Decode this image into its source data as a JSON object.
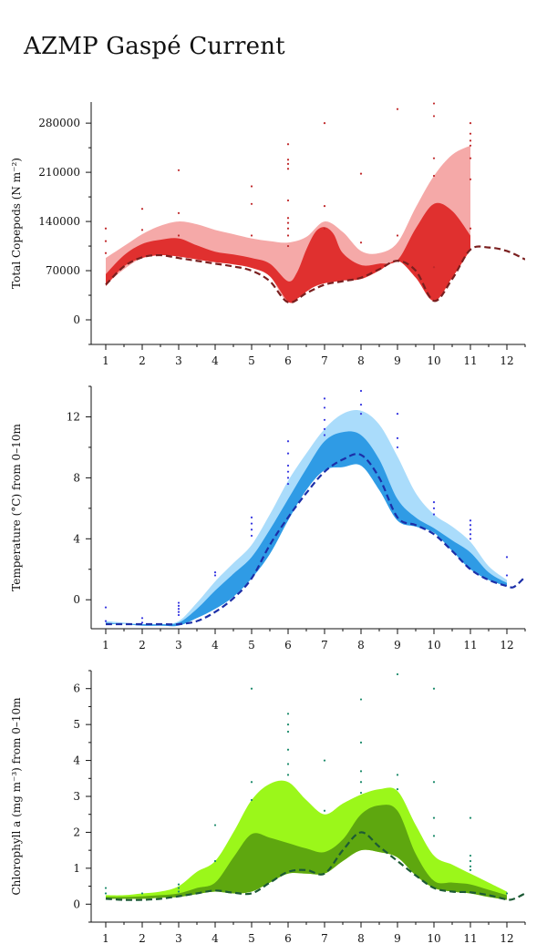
{
  "title": "AZMP Gaspé Current",
  "colors": {
    "copepod_outer": "#f5a9a8",
    "copepod_inner": "#e0302f",
    "copepod_line": "#7a1f1f",
    "copepod_dots": "#c0282a",
    "temp_outer": "#aadcfb",
    "temp_inner": "#2f9be5",
    "temp_line": "#1c2fa8",
    "temp_dots": "#3535e0",
    "chl_outer": "#9bf71a",
    "chl_inner": "#5ea70f",
    "chl_line": "#1c5a35",
    "chl_dots": "#1a8a6a"
  },
  "chart_data": [
    {
      "type": "area",
      "name": "copepods",
      "ylabel": "Total Copepods (N m⁻²)",
      "yticks": [
        0,
        70000,
        140000,
        210000,
        280000
      ],
      "ytick_labels": [
        "0",
        "70000",
        "140000",
        "210000",
        "280000"
      ],
      "ylim": [
        -35000,
        310000
      ],
      "xlim": [
        0.6,
        12.5
      ],
      "xticks": [
        1,
        2,
        3,
        4,
        5,
        6,
        7,
        8,
        9,
        10,
        11,
        12
      ],
      "xtick_labels": [
        "1",
        "2",
        "3",
        "4",
        "5",
        "6",
        "7",
        "8",
        "9",
        "10",
        "11",
        "12"
      ],
      "outer_band": {
        "x": [
          1,
          1.5,
          2,
          2.5,
          3,
          3.5,
          4,
          4.5,
          5,
          5.5,
          6,
          6.5,
          7,
          7.5,
          8,
          8.5,
          9,
          9.5,
          10,
          10.5,
          11
        ],
        "upper": [
          88000,
          105000,
          122000,
          134000,
          140000,
          136000,
          128000,
          122000,
          116000,
          112000,
          110000,
          118000,
          140000,
          125000,
          98000,
          95000,
          110000,
          160000,
          205000,
          235000,
          248000
        ],
        "lower": [
          50000,
          72000,
          88000,
          92000,
          90000,
          86000,
          82000,
          79000,
          74000,
          62000,
          25000,
          42000,
          52000,
          60000,
          60000,
          72000,
          84000,
          70000,
          27000,
          60000,
          100000
        ]
      },
      "inner_band": {
        "x": [
          1,
          1.5,
          2,
          2.5,
          3,
          3.5,
          4,
          4.5,
          5,
          5.5,
          6,
          6.25,
          6.5,
          6.75,
          7,
          7.25,
          7.5,
          8,
          8.5,
          9,
          9.5,
          10,
          10.5,
          11
        ],
        "upper": [
          65000,
          92000,
          108000,
          114000,
          116000,
          106000,
          97000,
          93000,
          88000,
          80000,
          55000,
          68000,
          100000,
          125000,
          132000,
          122000,
          95000,
          78000,
          80000,
          85000,
          130000,
          165000,
          155000,
          120000
        ],
        "lower": [
          48000,
          76000,
          88000,
          92000,
          90000,
          86000,
          82000,
          79000,
          74000,
          62000,
          26000,
          30000,
          40000,
          48000,
          52000,
          54000,
          56000,
          58000,
          70000,
          84000,
          60000,
          27000,
          60000,
          100000
        ]
      },
      "mean_line": {
        "x": [
          1,
          1.5,
          2,
          2.5,
          3,
          3.5,
          4,
          4.5,
          5,
          5.5,
          6,
          6.5,
          7,
          7.5,
          8,
          8.5,
          9,
          9.5,
          10,
          10.5,
          11,
          11.5,
          12,
          12.5
        ],
        "y": [
          50000,
          76000,
          89000,
          92000,
          88000,
          84000,
          80000,
          76000,
          70000,
          55000,
          25000,
          38000,
          50000,
          55000,
          60000,
          72000,
          84000,
          70000,
          27000,
          58000,
          100000,
          103000,
          98000,
          86000
        ]
      },
      "scatter": {
        "x": [
          1,
          1,
          1,
          2,
          2,
          3,
          3,
          3,
          5,
          5,
          5,
          6,
          6,
          6,
          6,
          6,
          6,
          6,
          6,
          6,
          6,
          7,
          7,
          7,
          8,
          8,
          9,
          9,
          10,
          10,
          10,
          10,
          10,
          11,
          11,
          11,
          11,
          11,
          11,
          11
        ],
        "y": [
          130000,
          112000,
          95000,
          158000,
          128000,
          213000,
          152000,
          120000,
          190000,
          165000,
          120000,
          250000,
          228000,
          222000,
          215000,
          170000,
          145000,
          138000,
          130000,
          120000,
          105000,
          280000,
          162000,
          130000,
          208000,
          110000,
          300000,
          120000,
          308000,
          290000,
          230000,
          205000,
          75000,
          280000,
          265000,
          255000,
          248000,
          230000,
          200000,
          130000
        ]
      }
    },
    {
      "type": "area",
      "name": "temperature",
      "ylabel": "Temperature (°C) from 0–10m",
      "yticks": [
        0,
        4,
        8,
        12
      ],
      "ytick_labels": [
        "0",
        "4",
        "8",
        "12"
      ],
      "ylim": [
        -1.9,
        14
      ],
      "xlim": [
        0.6,
        12.5
      ],
      "xticks": [
        1,
        2,
        3,
        4,
        5,
        6,
        7,
        8,
        9,
        10,
        11,
        12
      ],
      "xtick_labels": [
        "1",
        "2",
        "3",
        "4",
        "5",
        "6",
        "7",
        "8",
        "9",
        "10",
        "11",
        "12"
      ],
      "outer_band": {
        "x": [
          1,
          1.5,
          2,
          2.5,
          3,
          3.5,
          4,
          4.5,
          5,
          5.5,
          6,
          6.5,
          7,
          7.5,
          8,
          8.5,
          9,
          9.5,
          10,
          10.5,
          11,
          11.5,
          12
        ],
        "upper": [
          -1.4,
          -1.5,
          -1.6,
          -1.6,
          -1.4,
          -0.2,
          1.2,
          2.4,
          3.6,
          5.6,
          7.8,
          9.6,
          11.2,
          12.2,
          12.4,
          11.5,
          9.4,
          7.0,
          5.6,
          4.8,
          3.8,
          2.2,
          1.3
        ],
        "lower": [
          -1.6,
          -1.6,
          -1.7,
          -1.7,
          -1.7,
          -1.2,
          -0.6,
          0.2,
          1.4,
          3.0,
          5.2,
          7.2,
          8.5,
          8.7,
          8.8,
          7.2,
          5.2,
          4.8,
          4.4,
          3.2,
          2.0,
          1.3,
          0.9
        ]
      },
      "inner_band": {
        "x": [
          1,
          1.5,
          2,
          2.5,
          3,
          3.5,
          4,
          4.5,
          5,
          5.5,
          6,
          6.5,
          7,
          7.5,
          8,
          8.5,
          9,
          9.5,
          10,
          10.5,
          11,
          11.5,
          12
        ],
        "upper": [
          -1.5,
          -1.6,
          -1.6,
          -1.6,
          -1.5,
          -0.6,
          0.6,
          1.7,
          2.8,
          4.6,
          6.6,
          8.6,
          10.4,
          11.0,
          10.8,
          9.2,
          6.6,
          5.4,
          4.7,
          3.9,
          3.1,
          1.8,
          1.1
        ],
        "lower": [
          -1.6,
          -1.6,
          -1.7,
          -1.7,
          -1.7,
          -1.2,
          -0.6,
          0.2,
          1.4,
          3.0,
          5.2,
          7.2,
          8.5,
          8.7,
          8.8,
          7.2,
          5.2,
          4.8,
          4.4,
          3.2,
          2.0,
          1.3,
          0.9
        ]
      },
      "mean_line": {
        "x": [
          1,
          1.5,
          2,
          2.5,
          3,
          3.5,
          4,
          4.5,
          5,
          5.5,
          6,
          6.5,
          7,
          7.5,
          8,
          8.5,
          9,
          9.5,
          10,
          10.5,
          11,
          11.5,
          12,
          12.2,
          12.5
        ],
        "y": [
          -1.6,
          -1.6,
          -1.6,
          -1.6,
          -1.6,
          -1.4,
          -0.8,
          0.1,
          1.4,
          3.6,
          5.4,
          7.0,
          8.4,
          9.2,
          9.5,
          8.0,
          5.4,
          4.9,
          4.3,
          3.2,
          2.0,
          1.3,
          0.9,
          0.85,
          1.5
        ]
      },
      "scatter": {
        "x": [
          1,
          1,
          2,
          2,
          3,
          3,
          3,
          3,
          3,
          4,
          4,
          5,
          5,
          5,
          5,
          6,
          6,
          6,
          6,
          6,
          6,
          7,
          7,
          7,
          7,
          7,
          8,
          8,
          8,
          9,
          9,
          9,
          10,
          10,
          10,
          11,
          11,
          11,
          11,
          11,
          12,
          12
        ],
        "y": [
          -0.5,
          -1.4,
          -1.2,
          -1.5,
          -0.2,
          -0.4,
          -0.6,
          -0.8,
          -1.0,
          1.8,
          1.6,
          5.4,
          5.0,
          4.6,
          4.2,
          10.4,
          9.6,
          8.8,
          8.4,
          8.0,
          7.6,
          13.2,
          12.6,
          11.8,
          11.2,
          10.8,
          13.7,
          12.8,
          12.2,
          12.2,
          10.6,
          10.0,
          6.4,
          6.0,
          5.6,
          5.2,
          4.9,
          4.6,
          4.3,
          4.0,
          2.8,
          1.6
        ]
      }
    },
    {
      "type": "area",
      "name": "chlorophyll",
      "ylabel": "Chlorophyll a (mg m⁻³) from 0–10m",
      "yticks": [
        0,
        1,
        2,
        3,
        4,
        5,
        6
      ],
      "ytick_labels": [
        "0",
        "1",
        "2",
        "3",
        "4",
        "5",
        "6"
      ],
      "ylim": [
        -0.5,
        6.5
      ],
      "xlim": [
        0.6,
        12.5
      ],
      "xticks": [
        1,
        2,
        3,
        4,
        5,
        6,
        7,
        8,
        9,
        10,
        11,
        12
      ],
      "xtick_labels": [
        "1",
        "2",
        "3",
        "4",
        "5",
        "6",
        "7",
        "8",
        "9",
        "10",
        "11",
        "12"
      ],
      "outer_band": {
        "x": [
          1,
          1.5,
          2,
          2.5,
          3,
          3.5,
          4,
          4.5,
          5,
          5.5,
          6,
          6.5,
          7,
          7.5,
          8,
          8.5,
          9,
          9.5,
          10,
          10.5,
          11,
          11.5,
          12
        ],
        "upper": [
          0.25,
          0.25,
          0.3,
          0.35,
          0.5,
          0.9,
          1.2,
          2.0,
          2.9,
          3.35,
          3.4,
          2.9,
          2.5,
          2.8,
          3.05,
          3.2,
          3.15,
          2.2,
          1.35,
          1.1,
          0.85,
          0.6,
          0.35
        ],
        "lower": [
          0.15,
          0.15,
          0.15,
          0.18,
          0.2,
          0.28,
          0.35,
          0.3,
          0.35,
          0.6,
          0.85,
          0.85,
          0.85,
          1.2,
          1.5,
          1.45,
          1.3,
          0.8,
          0.45,
          0.35,
          0.3,
          0.2,
          0.12
        ]
      },
      "inner_band": {
        "x": [
          1,
          1.5,
          2,
          2.5,
          3,
          3.5,
          4,
          4.5,
          5,
          5.5,
          6,
          6.5,
          7,
          7.5,
          8,
          8.5,
          9,
          9.5,
          10,
          10.5,
          11,
          11.5,
          12
        ],
        "upper": [
          0.2,
          0.2,
          0.22,
          0.25,
          0.3,
          0.45,
          0.6,
          1.3,
          1.95,
          1.85,
          1.7,
          1.55,
          1.45,
          1.8,
          2.5,
          2.75,
          2.6,
          1.4,
          0.65,
          0.6,
          0.55,
          0.4,
          0.25
        ],
        "lower": [
          0.15,
          0.15,
          0.15,
          0.18,
          0.2,
          0.28,
          0.35,
          0.3,
          0.35,
          0.6,
          0.85,
          0.85,
          0.85,
          1.2,
          1.5,
          1.45,
          1.3,
          0.8,
          0.45,
          0.35,
          0.3,
          0.2,
          0.12
        ]
      },
      "mean_line": {
        "x": [
          1,
          1.5,
          2,
          2.5,
          3,
          3.5,
          4,
          4.5,
          5,
          5.5,
          6,
          6.5,
          7,
          7.5,
          8,
          8.5,
          9,
          9.5,
          10,
          10.5,
          11,
          11.5,
          12,
          12.2,
          12.5
        ],
        "y": [
          0.15,
          0.12,
          0.12,
          0.15,
          0.22,
          0.3,
          0.38,
          0.32,
          0.3,
          0.6,
          0.9,
          0.95,
          0.85,
          1.5,
          2.0,
          1.6,
          1.2,
          0.8,
          0.45,
          0.35,
          0.33,
          0.25,
          0.13,
          0.15,
          0.3
        ]
      },
      "scatter": {
        "x": [
          1,
          1,
          2,
          3,
          3,
          3,
          4,
          4,
          5,
          5,
          5,
          6,
          6,
          6,
          6,
          6,
          6,
          7,
          7,
          8,
          8,
          8,
          8,
          8,
          9,
          9,
          9,
          10,
          10,
          10,
          10,
          11,
          11,
          11,
          11,
          11,
          12
        ],
        "y": [
          0.45,
          0.3,
          0.3,
          0.55,
          0.45,
          0.35,
          2.2,
          1.2,
          6.0,
          3.4,
          2.9,
          5.3,
          5.0,
          4.8,
          4.3,
          3.9,
          3.6,
          4.0,
          2.6,
          5.7,
          4.5,
          3.7,
          3.4,
          3.1,
          6.4,
          3.6,
          3.2,
          6.0,
          3.4,
          2.4,
          1.9,
          2.4,
          1.35,
          1.2,
          1.05,
          0.95,
          0.3
        ]
      }
    }
  ]
}
